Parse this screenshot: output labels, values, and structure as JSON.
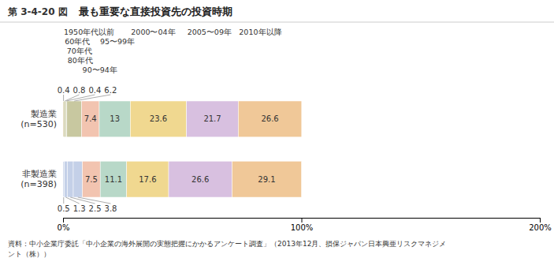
{
  "chart_data": {
    "type": "bar",
    "orientation": "horizontal",
    "stacked": true,
    "title": "最も重要な直接投資先の投資時期",
    "annotations": [
      "第 3-4-20 図",
      "資料：中小企業庁委託「中小企業の海外展開の実態把握にかかるアンケート調査」（2013年12月、損保ジャパン日本興亜リスクマネジメ",
      "ント（株））"
    ],
    "categories": [
      "製造業\n(n=530)",
      "非製造業\n(n=398)"
    ],
    "series": [
      {
        "name": "1950年代以前",
        "colors": [
          "#d4cca0",
          "#c4d0e8"
        ],
        "values": [
          0.4,
          0.5
        ]
      },
      {
        "name": "60年代",
        "colors": [
          "#c8c8a0",
          "#c4d0e8"
        ],
        "values": [
          0.8,
          1.3
        ]
      },
      {
        "name": "70年代",
        "colors": [
          "#c8c8a0",
          "#c4d0e8"
        ],
        "values": [
          0.4,
          2.5
        ]
      },
      {
        "name": "80年代",
        "colors": [
          "#c8c8a0",
          "#c4d0e8"
        ],
        "values": [
          6.2,
          3.8
        ]
      },
      {
        "name": "90〜94年",
        "colors": [
          "#f2c4b0",
          "#f2c4b0"
        ],
        "values": [
          7.4,
          7.5
        ]
      },
      {
        "name": "95〜99年",
        "colors": [
          "#b8d8c8",
          "#b8d8c8"
        ],
        "values": [
          13.0,
          11.1
        ]
      },
      {
        "name": "2000〜04年",
        "colors": [
          "#f0d890",
          "#f0d890"
        ],
        "values": [
          23.6,
          17.6
        ]
      },
      {
        "name": "2005〜09年",
        "colors": [
          "#d8c0e0",
          "#d8c0e0"
        ],
        "values": [
          21.7,
          26.6
        ]
      },
      {
        "name": "2010年以降",
        "colors": [
          "#f0c898",
          "#f0c898"
        ],
        "values": [
          26.6,
          29.1
        ]
      }
    ],
    "xlim": [
      0,
      200
    ],
    "xticks": [
      {
        "value": 0,
        "label": "0%"
      },
      {
        "value": 100,
        "label": "100%"
      },
      {
        "value": 200,
        "label": "200%"
      }
    ],
    "grid": false,
    "data_labels": true
  }
}
